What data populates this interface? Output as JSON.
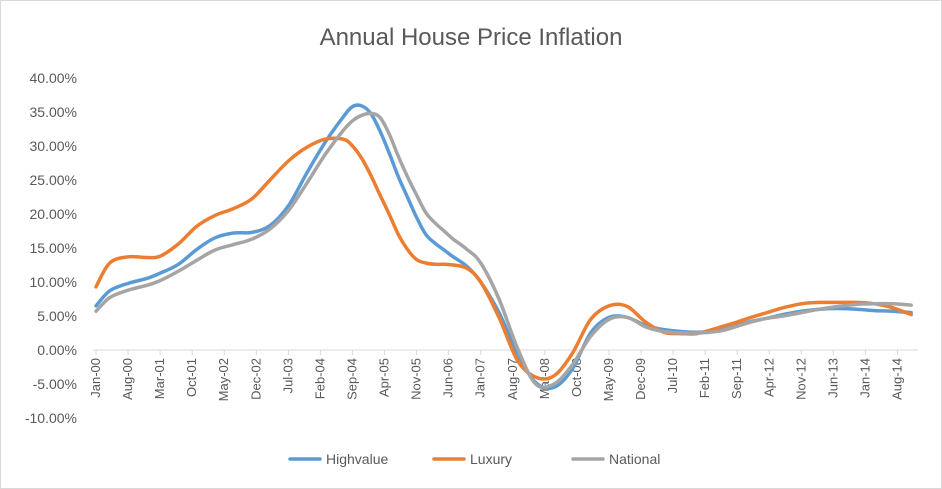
{
  "chart_data": {
    "type": "line",
    "title": "Annual House Price Inflation",
    "xlabel": "",
    "ylabel": "",
    "ylim": [
      -10,
      40
    ],
    "y_ticks": [
      "40.00%",
      "35.00%",
      "30.00%",
      "25.00%",
      "20.00%",
      "15.00%",
      "10.00%",
      "5.00%",
      "0.00%",
      "-5.00%",
      "-10.00%"
    ],
    "x_tick_labels": [
      "Jan-00",
      "Aug-00",
      "Mar-01",
      "Oct-01",
      "May-02",
      "Dec-02",
      "Jul-03",
      "Feb-04",
      "Sep-04",
      "Apr-05",
      "Nov-05",
      "Jun-06",
      "Jan-07",
      "Aug-07",
      "Mar-08",
      "Oct-08",
      "May-09",
      "Dec-09",
      "Jul-10",
      "Feb-11",
      "Sep-11",
      "Apr-12",
      "Nov-12",
      "Jun-13",
      "Jan-14",
      "Aug-14"
    ],
    "grid": false,
    "legend_position": "bottom",
    "x_units": "month index (0 = Jan-00)",
    "x": [
      0,
      3,
      7,
      11,
      14,
      18,
      22,
      26,
      30,
      34,
      38,
      42,
      46,
      50,
      54,
      56,
      58,
      60,
      62,
      64,
      66,
      68,
      70,
      72,
      74,
      76,
      78,
      81,
      84,
      88,
      92,
      96,
      100,
      104,
      108,
      112,
      116,
      120,
      124,
      128,
      131,
      134,
      137,
      140,
      143,
      146,
      150,
      154,
      158,
      162,
      166,
      170,
      174,
      178
    ],
    "series": [
      {
        "name": "Highvalue",
        "color": "#5b9bd5",
        "values": [
          6.5,
          8.7,
          9.8,
          10.5,
          11.3,
          12.6,
          14.8,
          16.5,
          17.2,
          17.3,
          18.3,
          21.2,
          26.0,
          30.5,
          34.3,
          35.8,
          35.9,
          34.8,
          32.2,
          29.0,
          25.5,
          22.5,
          19.5,
          17.0,
          15.7,
          14.7,
          13.7,
          12.3,
          10.0,
          5.5,
          -0.5,
          -4.8,
          -5.5,
          -2.8,
          2.5,
          4.8,
          4.8,
          3.6,
          3.0,
          2.7,
          2.6,
          2.7,
          3.0,
          3.6,
          4.2,
          4.6,
          5.2,
          5.7,
          6.0,
          6.1,
          6.0,
          5.8,
          5.7,
          5.5
        ]
      },
      {
        "name": "Luxury",
        "color": "#ed7d31",
        "values": [
          9.3,
          12.8,
          13.7,
          13.6,
          13.8,
          15.6,
          18.2,
          19.8,
          20.8,
          22.2,
          25.0,
          27.8,
          29.8,
          31.0,
          31.0,
          30.0,
          28.2,
          25.7,
          22.8,
          20.0,
          17.0,
          14.8,
          13.3,
          12.8,
          12.6,
          12.6,
          12.5,
          12.0,
          10.0,
          4.8,
          -1.5,
          -4.0,
          -3.8,
          -0.5,
          4.5,
          6.5,
          6.4,
          4.1,
          2.6,
          2.4,
          2.4,
          2.9,
          3.5,
          4.1,
          4.8,
          5.4,
          6.2,
          6.8,
          7.0,
          7.0,
          7.0,
          6.8,
          6.2,
          5.2
        ]
      },
      {
        "name": "National",
        "color": "#a5a5a5",
        "values": [
          5.7,
          7.7,
          8.8,
          9.5,
          10.2,
          11.6,
          13.2,
          14.7,
          15.5,
          16.3,
          17.8,
          20.5,
          24.5,
          28.7,
          32.3,
          33.7,
          34.5,
          34.8,
          34.2,
          31.8,
          28.5,
          25.5,
          22.8,
          20.2,
          18.7,
          17.5,
          16.3,
          14.8,
          12.8,
          7.5,
          0.3,
          -5.0,
          -5.0,
          -2.2,
          2.0,
          4.5,
          4.8,
          3.4,
          2.7,
          2.5,
          2.5,
          2.6,
          2.9,
          3.5,
          4.1,
          4.6,
          5.0,
          5.5,
          6.0,
          6.4,
          6.7,
          6.8,
          6.8,
          6.6
        ]
      }
    ]
  }
}
